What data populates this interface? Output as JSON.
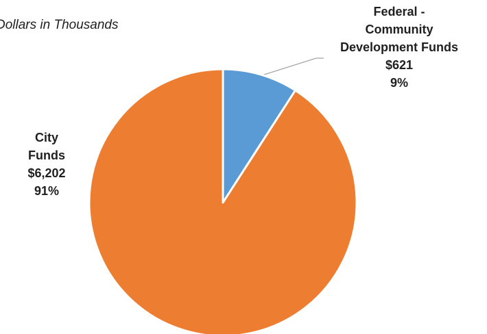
{
  "chart_data": {
    "type": "pie",
    "subtitle": "Dollars in Thousands",
    "slices": [
      {
        "label_lines": [
          "Federal -",
          "Community",
          "Development Funds"
        ],
        "value": 621,
        "value_label": "$621",
        "percent_label": "9%",
        "color": "#5B9BD5"
      },
      {
        "label_lines": [
          "City",
          "Funds"
        ],
        "value": 6202,
        "value_label": "$6,202",
        "percent_label": "91%",
        "color": "#ED7D31"
      }
    ],
    "start_angle_deg": 0,
    "direction": "clockwise",
    "legend": "none"
  }
}
